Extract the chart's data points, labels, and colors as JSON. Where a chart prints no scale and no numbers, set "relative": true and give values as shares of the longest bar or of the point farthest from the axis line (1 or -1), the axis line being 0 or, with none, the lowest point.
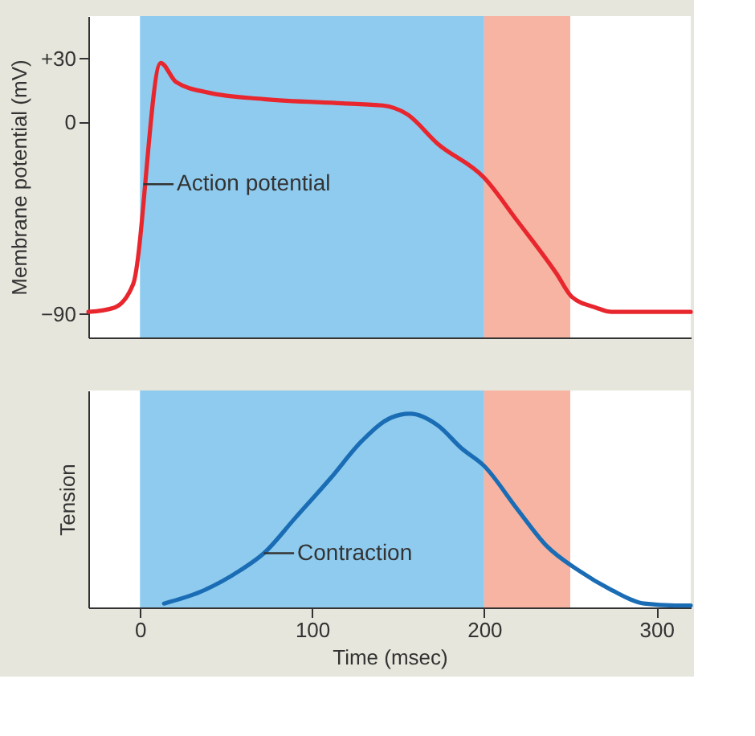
{
  "chart_data": [
    {
      "type": "line",
      "ylabel": "Membrane potential (mV)",
      "xlim": [
        -30,
        320
      ],
      "ylim": [
        -101,
        50
      ],
      "yticks": [
        {
          "value": 30,
          "label": "+30"
        },
        0,
        {
          "value": -90,
          "label": "−90"
        }
      ],
      "tick_labels": "y",
      "grid": false,
      "series": [
        {
          "color": "#e8262e",
          "x": [
            -30,
            -15,
            -4,
            12,
            21,
            40,
            72,
            118,
            141,
            155,
            173,
            200,
            219,
            242,
            251,
            265,
            274,
            320
          ],
          "values": [
            -89,
            -87,
            -76,
            28,
            19,
            14,
            11,
            9,
            8,
            4,
            -10,
            -26,
            -46,
            -71,
            -82,
            -87,
            -89,
            -89
          ]
        }
      ],
      "bands": [
        {
          "axis": "x",
          "from": 0,
          "to": 200,
          "color": "#8ecbee"
        },
        {
          "axis": "x",
          "from": 200,
          "to": 250,
          "color": "#f8b4a2"
        }
      ],
      "annotations": [
        {
          "text": "Action potential",
          "x": 2,
          "y": -29
        }
      ]
    },
    {
      "type": "line",
      "ylabel": "Tension",
      "xlabel": "Time (msec)",
      "relative": true,
      "xlim": [
        -30,
        320
      ],
      "xticks": [
        0,
        100,
        200,
        300
      ],
      "tick_labels": "x",
      "grid": false,
      "series": [
        {
          "color": "#1a6db5",
          "x": [
            14,
            35,
            58,
            72,
            90,
            111,
            129,
            146,
            157,
            173,
            187,
            200,
            219,
            236,
            255,
            274,
            293,
            311,
            320
          ],
          "values": [
            0.02,
            0.08,
            0.19,
            0.28,
            0.46,
            0.67,
            0.86,
            0.98,
            1,
            0.94,
            0.82,
            0.73,
            0.51,
            0.32,
            0.19,
            0.09,
            0.02,
            0.01,
            0.01
          ]
        }
      ],
      "bands": [
        {
          "axis": "x",
          "from": 0,
          "to": 200,
          "color": "#8ecbee"
        },
        {
          "axis": "x",
          "from": 200,
          "to": 250,
          "color": "#f8b4a2"
        }
      ],
      "annotations": [
        {
          "text": "Contraction",
          "x": 72,
          "y": 0.28
        }
      ]
    }
  ]
}
